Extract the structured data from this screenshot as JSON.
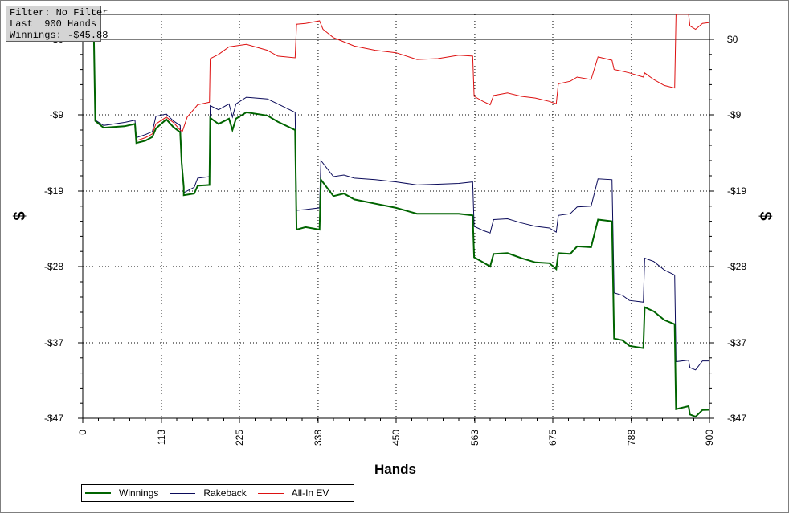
{
  "info": {
    "filter": "Filter: No Filter",
    "last": "Last  900 Hands",
    "winnings": "Winnings: -$45.88"
  },
  "chart_data": {
    "type": "line",
    "title": "",
    "xlabel": "Hands",
    "ylabel": "$",
    "xlim": [
      0,
      900
    ],
    "ylim": [
      -47,
      3
    ],
    "x_ticks": [
      "0",
      "113",
      "225",
      "338",
      "450",
      "563",
      "675",
      "788",
      "900"
    ],
    "y_ticks": [
      "$0",
      "-$9",
      "-$19",
      "-$28",
      "-$37",
      "-$47"
    ],
    "grid": true,
    "legend_position": "bottom-left",
    "series": [
      {
        "name": "Winnings",
        "color": "#006400",
        "points": [
          [
            0,
            0
          ],
          [
            16,
            0
          ],
          [
            18,
            -9.8
          ],
          [
            30,
            -10.7
          ],
          [
            60,
            -10.5
          ],
          [
            75,
            -10.2
          ],
          [
            77,
            -12.7
          ],
          [
            90,
            -12.4
          ],
          [
            100,
            -11.9
          ],
          [
            105,
            -10.8
          ],
          [
            120,
            -9.6
          ],
          [
            130,
            -10.6
          ],
          [
            140,
            -11.3
          ],
          [
            142,
            -15.3
          ],
          [
            145,
            -18.5
          ],
          [
            145,
            -19.5
          ],
          [
            160,
            -19.3
          ],
          [
            165,
            -18.3
          ],
          [
            182,
            -18.2
          ],
          [
            183,
            -9.4
          ],
          [
            195,
            -10.2
          ],
          [
            210,
            -9.5
          ],
          [
            215,
            -11.0
          ],
          [
            220,
            -9.5
          ],
          [
            235,
            -8.7
          ],
          [
            265,
            -9.1
          ],
          [
            280,
            -9.9
          ],
          [
            305,
            -11.0
          ],
          [
            307,
            -23.6
          ],
          [
            320,
            -23.3
          ],
          [
            340,
            -23.6
          ],
          [
            342,
            -17.5
          ],
          [
            360,
            -19.6
          ],
          [
            375,
            -19.3
          ],
          [
            390,
            -20.0
          ],
          [
            420,
            -20.5
          ],
          [
            450,
            -21.0
          ],
          [
            480,
            -21.7
          ],
          [
            510,
            -21.7
          ],
          [
            540,
            -21.7
          ],
          [
            560,
            -21.9
          ],
          [
            562,
            -26.9
          ],
          [
            575,
            -27.5
          ],
          [
            585,
            -28.0
          ],
          [
            590,
            -26.5
          ],
          [
            610,
            -26.4
          ],
          [
            630,
            -27.0
          ],
          [
            650,
            -27.5
          ],
          [
            670,
            -27.6
          ],
          [
            680,
            -28.3
          ],
          [
            683,
            -26.4
          ],
          [
            700,
            -26.5
          ],
          [
            710,
            -25.6
          ],
          [
            730,
            -25.7
          ],
          [
            740,
            -22.4
          ],
          [
            760,
            -22.6
          ],
          [
            763,
            -36.5
          ],
          [
            775,
            -36.7
          ],
          [
            785,
            -37.4
          ],
          [
            805,
            -37.7
          ],
          [
            807,
            -32.8
          ],
          [
            820,
            -33.3
          ],
          [
            835,
            -34.3
          ],
          [
            850,
            -34.8
          ],
          [
            852,
            -45.8
          ],
          [
            870,
            -45.4
          ],
          [
            872,
            -46.5
          ],
          [
            880,
            -46.8
          ],
          [
            890,
            -45.9
          ],
          [
            900,
            -45.88
          ]
        ]
      },
      {
        "name": "Rakeback",
        "color": "#0a0a5a",
        "points": [
          [
            0,
            0
          ],
          [
            16,
            0
          ],
          [
            18,
            -9.7
          ],
          [
            30,
            -10.4
          ],
          [
            60,
            -10.0
          ],
          [
            75,
            -9.7
          ],
          [
            77,
            -12.0
          ],
          [
            90,
            -11.6
          ],
          [
            100,
            -11.2
          ],
          [
            105,
            -9.2
          ],
          [
            120,
            -8.9
          ],
          [
            130,
            -9.8
          ],
          [
            140,
            -10.4
          ],
          [
            142,
            -14.7
          ],
          [
            145,
            -18.6
          ],
          [
            145,
            -19.2
          ],
          [
            160,
            -18.5
          ],
          [
            165,
            -17.3
          ],
          [
            182,
            -17.1
          ],
          [
            183,
            -7.9
          ],
          [
            195,
            -8.4
          ],
          [
            210,
            -7.7
          ],
          [
            215,
            -9.3
          ],
          [
            220,
            -7.7
          ],
          [
            235,
            -6.9
          ],
          [
            265,
            -7.1
          ],
          [
            280,
            -7.7
          ],
          [
            305,
            -8.7
          ],
          [
            307,
            -21.3
          ],
          [
            320,
            -21.2
          ],
          [
            340,
            -21.0
          ],
          [
            342,
            -15.0
          ],
          [
            360,
            -17.1
          ],
          [
            375,
            -16.9
          ],
          [
            390,
            -17.3
          ],
          [
            420,
            -17.5
          ],
          [
            450,
            -17.8
          ],
          [
            480,
            -18.2
          ],
          [
            510,
            -18.1
          ],
          [
            540,
            -18.0
          ],
          [
            560,
            -17.8
          ],
          [
            562,
            -23.2
          ],
          [
            575,
            -23.7
          ],
          [
            585,
            -24.0
          ],
          [
            590,
            -22.4
          ],
          [
            610,
            -22.3
          ],
          [
            630,
            -22.8
          ],
          [
            650,
            -23.2
          ],
          [
            670,
            -23.4
          ],
          [
            680,
            -23.9
          ],
          [
            683,
            -21.9
          ],
          [
            700,
            -21.7
          ],
          [
            710,
            -20.9
          ],
          [
            730,
            -20.8
          ],
          [
            740,
            -17.4
          ],
          [
            760,
            -17.5
          ],
          [
            763,
            -31.1
          ],
          [
            775,
            -31.4
          ],
          [
            785,
            -32.0
          ],
          [
            805,
            -32.2
          ],
          [
            807,
            -27.0
          ],
          [
            820,
            -27.4
          ],
          [
            835,
            -28.4
          ],
          [
            850,
            -29.0
          ],
          [
            852,
            -39.5
          ],
          [
            870,
            -39.3
          ],
          [
            872,
            -40.3
          ],
          [
            880,
            -40.6
          ],
          [
            890,
            -39.4
          ],
          [
            900,
            -39.4
          ]
        ]
      },
      {
        "name": "All-In EV",
        "color": "#dd1111",
        "points": [
          [
            0,
            0
          ],
          [
            16,
            0
          ],
          [
            18,
            -9.8
          ],
          [
            30,
            -10.7
          ],
          [
            60,
            -10.5
          ],
          [
            75,
            -10.2
          ],
          [
            77,
            -12.4
          ],
          [
            90,
            -12.0
          ],
          [
            100,
            -11.5
          ],
          [
            105,
            -10.2
          ],
          [
            120,
            -9.3
          ],
          [
            130,
            -10.0
          ],
          [
            140,
            -11.0
          ],
          [
            143,
            -11.2
          ],
          [
            150,
            -9.3
          ],
          [
            165,
            -7.8
          ],
          [
            182,
            -7.5
          ],
          [
            183,
            -2.3
          ],
          [
            195,
            -1.8
          ],
          [
            210,
            -0.9
          ],
          [
            235,
            -0.6
          ],
          [
            265,
            -1.3
          ],
          [
            280,
            -2.0
          ],
          [
            305,
            -2.2
          ],
          [
            307,
            1.8
          ],
          [
            320,
            1.9
          ],
          [
            340,
            2.2
          ],
          [
            345,
            1.2
          ],
          [
            360,
            0.2
          ],
          [
            375,
            -0.3
          ],
          [
            390,
            -0.8
          ],
          [
            420,
            -1.3
          ],
          [
            450,
            -1.6
          ],
          [
            480,
            -2.4
          ],
          [
            510,
            -2.3
          ],
          [
            540,
            -1.9
          ],
          [
            560,
            -2.0
          ],
          [
            562,
            -6.8
          ],
          [
            575,
            -7.4
          ],
          [
            585,
            -7.8
          ],
          [
            590,
            -6.7
          ],
          [
            610,
            -6.4
          ],
          [
            630,
            -6.8
          ],
          [
            650,
            -7.0
          ],
          [
            670,
            -7.4
          ],
          [
            680,
            -7.7
          ],
          [
            683,
            -5.3
          ],
          [
            700,
            -5.0
          ],
          [
            710,
            -4.5
          ],
          [
            730,
            -4.8
          ],
          [
            740,
            -2.1
          ],
          [
            760,
            -2.5
          ],
          [
            763,
            -3.6
          ],
          [
            775,
            -3.8
          ],
          [
            785,
            -4.0
          ],
          [
            805,
            -4.5
          ],
          [
            807,
            -4.0
          ],
          [
            820,
            -4.8
          ],
          [
            835,
            -5.5
          ],
          [
            850,
            -5.8
          ],
          [
            852,
            3.0
          ],
          [
            870,
            3.0
          ],
          [
            872,
            1.6
          ],
          [
            880,
            1.2
          ],
          [
            890,
            1.9
          ],
          [
            900,
            2.0
          ]
        ]
      }
    ]
  }
}
